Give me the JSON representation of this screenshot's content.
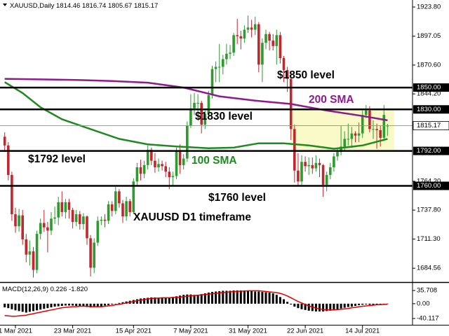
{
  "chart_data": {
    "type": "candlestick",
    "symbol": "XAUUSD,Daily",
    "categories": [
      null,
      null,
      null,
      "1 Mar 2021",
      null,
      null,
      null,
      null,
      null,
      null,
      null,
      null,
      null,
      null,
      null,
      null,
      null,
      null,
      null,
      "23 Mar 2021",
      null,
      null,
      null,
      null,
      null,
      null,
      null,
      null,
      null,
      null,
      null,
      null,
      null,
      null,
      null,
      null,
      "15 Apr 2021",
      null,
      null,
      null,
      null,
      null,
      null,
      null,
      null,
      null,
      null,
      null,
      null,
      null,
      null,
      null,
      "7 May 2021",
      null,
      null,
      null,
      null,
      null,
      null,
      null,
      null,
      null,
      null,
      null,
      null,
      null,
      null,
      null,
      "31 May 2021",
      null,
      null,
      null,
      null,
      null,
      null,
      null,
      null,
      null,
      null,
      null,
      null,
      null,
      null,
      null,
      "22 Jun 2021",
      null,
      null,
      null,
      null,
      null,
      null,
      null,
      null,
      null,
      null,
      null,
      null,
      null,
      null,
      null,
      "14 Jul 2021",
      null,
      null,
      null,
      null,
      null,
      null,
      null
    ],
    "ohlc": [
      [
        1805,
        1809,
        1791,
        1797
      ],
      [
        1797,
        1800,
        1765,
        1770
      ],
      [
        1770,
        1773,
        1728,
        1734
      ],
      [
        1734,
        1740,
        1717,
        1723
      ],
      [
        1723,
        1739,
        1718,
        1733
      ],
      [
        1733,
        1738,
        1706,
        1711
      ],
      [
        1711,
        1716,
        1690,
        1697
      ],
      [
        1697,
        1710,
        1687,
        1700
      ],
      [
        1700,
        1704,
        1676,
        1683
      ],
      [
        1683,
        1719,
        1680,
        1716
      ],
      [
        1716,
        1730,
        1711,
        1726
      ],
      [
        1726,
        1738,
        1718,
        1722
      ],
      [
        1722,
        1727,
        1699,
        1719
      ],
      [
        1719,
        1736,
        1715,
        1730
      ],
      [
        1730,
        1741,
        1725,
        1731
      ],
      [
        1731,
        1750,
        1724,
        1745
      ],
      [
        1745,
        1755,
        1732,
        1736
      ],
      [
        1736,
        1748,
        1730,
        1745
      ],
      [
        1745,
        1748,
        1730,
        1738
      ],
      [
        1738,
        1740,
        1721,
        1727
      ],
      [
        1727,
        1738,
        1723,
        1734
      ],
      [
        1734,
        1737,
        1720,
        1725
      ],
      [
        1725,
        1735,
        1720,
        1732
      ],
      [
        1732,
        1733,
        1706,
        1712
      ],
      [
        1712,
        1715,
        1677,
        1685
      ],
      [
        1685,
        1712,
        1680,
        1708
      ],
      [
        1708,
        1732,
        1705,
        1728
      ],
      [
        1728,
        1732,
        1724,
        1729
      ],
      [
        1729,
        1734,
        1722,
        1728
      ],
      [
        1728,
        1746,
        1725,
        1743
      ],
      [
        1743,
        1746,
        1732,
        1737
      ],
      [
        1737,
        1759,
        1734,
        1755
      ],
      [
        1755,
        1757,
        1740,
        1744
      ],
      [
        1744,
        1747,
        1726,
        1732
      ],
      [
        1732,
        1750,
        1728,
        1746
      ],
      [
        1746,
        1748,
        1732,
        1736
      ],
      [
        1736,
        1767,
        1734,
        1764
      ],
      [
        1764,
        1781,
        1760,
        1777
      ],
      [
        1777,
        1784,
        1765,
        1771
      ],
      [
        1771,
        1783,
        1767,
        1779
      ],
      [
        1779,
        1797,
        1775,
        1793
      ],
      [
        1793,
        1795,
        1779,
        1783
      ],
      [
        1783,
        1790,
        1772,
        1777
      ],
      [
        1777,
        1785,
        1773,
        1780
      ],
      [
        1780,
        1783,
        1774,
        1778
      ],
      [
        1778,
        1782,
        1768,
        1773
      ],
      [
        1773,
        1777,
        1757,
        1768
      ],
      [
        1768,
        1773,
        1760,
        1769
      ],
      [
        1769,
        1795,
        1766,
        1792
      ],
      [
        1792,
        1798,
        1771,
        1779
      ],
      [
        1779,
        1789,
        1775,
        1785
      ],
      [
        1785,
        1819,
        1782,
        1815
      ],
      [
        1815,
        1844,
        1813,
        1831
      ],
      [
        1831,
        1845,
        1825,
        1836
      ],
      [
        1836,
        1844,
        1822,
        1836
      ],
      [
        1836,
        1838,
        1808,
        1816
      ],
      [
        1816,
        1829,
        1812,
        1826
      ],
      [
        1826,
        1847,
        1823,
        1843
      ],
      [
        1843,
        1870,
        1840,
        1867
      ],
      [
        1867,
        1874,
        1855,
        1869
      ],
      [
        1869,
        1890,
        1855,
        1869
      ],
      [
        1869,
        1880,
        1862,
        1876
      ],
      [
        1876,
        1890,
        1871,
        1881
      ],
      [
        1881,
        1889,
        1876,
        1882
      ],
      [
        1882,
        1900,
        1879,
        1898
      ],
      [
        1898,
        1913,
        1890,
        1897
      ],
      [
        1897,
        1902,
        1885,
        1895
      ],
      [
        1895,
        1907,
        1891,
        1903
      ],
      [
        1903,
        1916,
        1900,
        1905
      ],
      [
        1905,
        1912,
        1896,
        1903
      ],
      [
        1903,
        1915,
        1898,
        1908
      ],
      [
        1908,
        1910,
        1864,
        1871
      ],
      [
        1871,
        1895,
        1855,
        1891
      ],
      [
        1891,
        1903,
        1885,
        1899
      ],
      [
        1899,
        1901,
        1884,
        1893
      ],
      [
        1893,
        1899,
        1884,
        1888
      ],
      [
        1888,
        1903,
        1871,
        1898
      ],
      [
        1898,
        1901,
        1872,
        1877
      ],
      [
        1877,
        1879,
        1855,
        1866
      ],
      [
        1866,
        1869,
        1846,
        1858
      ],
      [
        1858,
        1862,
        1802,
        1812
      ],
      [
        1812,
        1816,
        1763,
        1774
      ],
      [
        1774,
        1790,
        1760,
        1764
      ],
      [
        1764,
        1788,
        1761,
        1782
      ],
      [
        1782,
        1787,
        1773,
        1778
      ],
      [
        1778,
        1786,
        1770,
        1779
      ],
      [
        1779,
        1786,
        1771,
        1776
      ],
      [
        1776,
        1788,
        1773,
        1781
      ],
      [
        1781,
        1785,
        1768,
        1779
      ],
      [
        1779,
        1780,
        1750,
        1761
      ],
      [
        1761,
        1773,
        1755,
        1770
      ],
      [
        1770,
        1781,
        1766,
        1777
      ],
      [
        1777,
        1790,
        1773,
        1787
      ],
      [
        1787,
        1795,
        1783,
        1791
      ],
      [
        1791,
        1815,
        1788,
        1796
      ],
      [
        1796,
        1810,
        1792,
        1803
      ],
      [
        1803,
        1817,
        1797,
        1803
      ],
      [
        1803,
        1814,
        1795,
        1808
      ],
      [
        1808,
        1810,
        1800,
        1806
      ],
      [
        1806,
        1818,
        1800,
        1808
      ],
      [
        1808,
        1829,
        1804,
        1825
      ],
      [
        1825,
        1834,
        1822,
        1829
      ],
      [
        1829,
        1833,
        1809,
        1812
      ],
      [
        1812,
        1820,
        1803,
        1812
      ],
      [
        1812,
        1817,
        1794,
        1811
      ],
      [
        1811,
        1815,
        1796,
        1804
      ],
      [
        1804,
        1834,
        1801,
        1825
      ],
      [
        1814.46,
        1816.74,
        1805.67,
        1815.17
      ]
    ],
    "up_color": "#2e9b2e",
    "down_color": "#c0282d",
    "ylim": [
      1672.5,
      1930.2
    ],
    "yticks": [
      {
        "value": 1923.8,
        "label": "1923.80"
      },
      1897.05,
      {
        "value": 1870.6,
        "label": "1870.60"
      },
      {
        "value": 1844.2,
        "label": "1844.20"
      },
      {
        "value": 1764.2,
        "label": "1764.20"
      },
      {
        "value": 1737.8,
        "label": "1737.80"
      },
      {
        "value": 1711.3,
        "label": "1711.30"
      },
      1684.56
    ],
    "series": [
      {
        "name": "200 SMA",
        "color": "#8e1a8e",
        "x": [
          0,
          10,
          20,
          30,
          40,
          50,
          55,
          60,
          70,
          80,
          90,
          100,
          107
        ],
        "values": [
          1858,
          1857.5,
          1857,
          1856,
          1854.5,
          1850,
          1846,
          1842,
          1838,
          1835,
          1829,
          1824,
          1820
        ]
      },
      {
        "name": "100 SMA",
        "color": "#1f8a1f",
        "x": [
          0,
          5,
          10,
          16,
          24,
          32,
          40,
          48,
          57,
          64,
          71,
          78,
          85,
          92,
          100,
          107
        ],
        "values": [
          1855,
          1845,
          1832,
          1821,
          1812,
          1803,
          1798,
          1796,
          1794.5,
          1795,
          1799,
          1799,
          1797,
          1794,
          1797,
          1803
        ]
      }
    ],
    "levels": [
      {
        "value": 1850,
        "label": "1850.00",
        "annotation": "$1850 level"
      },
      {
        "value": 1830,
        "label": "1830.00",
        "annotation": "$1830 level"
      },
      {
        "value": 1792,
        "label": "1792.00",
        "annotation": "$1792 level"
      },
      {
        "value": 1760,
        "label": "1760.00",
        "annotation": "$1760 level"
      }
    ],
    "zone_color": "#fafac8",
    "annotation": "XAUUSD D1 timeframe",
    "macd": {
      "title": "MACD(12,26,9)",
      "readout": [
        0.226,
        {
          "value": -1.82,
          "label": "-1.820"
        }
      ],
      "ylim": [
        -53.4,
        52.8
      ],
      "yticks": [
        35.708,
        {
          "value": 0,
          "label": "0.00"
        },
        -40.117
      ],
      "histogram": {
        "color": "#000000",
        "values": [
          -10,
          -12,
          -15,
          -18,
          -20,
          -22,
          -24,
          -22,
          -20,
          -18,
          -16,
          -14,
          -12,
          -10,
          -8,
          -7,
          -6,
          -5,
          -5,
          -5,
          -6,
          -6,
          -7,
          -9,
          -10,
          -9,
          -8,
          -7,
          -5,
          -4,
          -2,
          0,
          2,
          4,
          6,
          8,
          10,
          12,
          14,
          15,
          16,
          17,
          17,
          16,
          16,
          15,
          16,
          18,
          20,
          22,
          24,
          25,
          25,
          24,
          24,
          26,
          28,
          30,
          32,
          33,
          34,
          35,
          35,
          35,
          36,
          36,
          36,
          36,
          35,
          34,
          33,
          33,
          32,
          31,
          30,
          28,
          24,
          18,
          12,
          5,
          -2,
          -8,
          -12,
          -15,
          -17,
          -19,
          -20,
          -21,
          -21,
          -21,
          -20,
          -19,
          -17,
          -15,
          -13,
          -11,
          -9,
          -8,
          -6,
          -4,
          -3,
          -2,
          -3,
          -3,
          -2,
          -1,
          -1,
          0.226
        ]
      },
      "signal": {
        "color": "#e00000",
        "values": [
          -32,
          -33,
          -34,
          -34,
          -33,
          -32,
          -31,
          -29,
          -27,
          -25,
          -23,
          -21,
          -19,
          -17,
          -15,
          -13,
          -11,
          -10,
          -9,
          -8,
          -8,
          -7,
          -7,
          -7,
          -8,
          -8,
          -8,
          -8,
          -7,
          -6,
          -5,
          -3,
          -2,
          0,
          2,
          4,
          6,
          8,
          10,
          11,
          13,
          14,
          15,
          15,
          16,
          16,
          16,
          17,
          17,
          18,
          19,
          20,
          21,
          22,
          23,
          24,
          25,
          26,
          27,
          28,
          29,
          30,
          31,
          32,
          33,
          33,
          34,
          34,
          35,
          35,
          35,
          35,
          34,
          33,
          32,
          31,
          30,
          28,
          25,
          21,
          16,
          11,
          6,
          2,
          -2,
          -6,
          -9,
          -12,
          -14,
          -16,
          -17,
          -17,
          -17,
          -16,
          -15,
          -14,
          -13,
          -11,
          -10,
          -8,
          -7,
          -6,
          -5,
          -4,
          -3,
          -2.5,
          -2,
          -1.82
        ]
      }
    }
  }
}
